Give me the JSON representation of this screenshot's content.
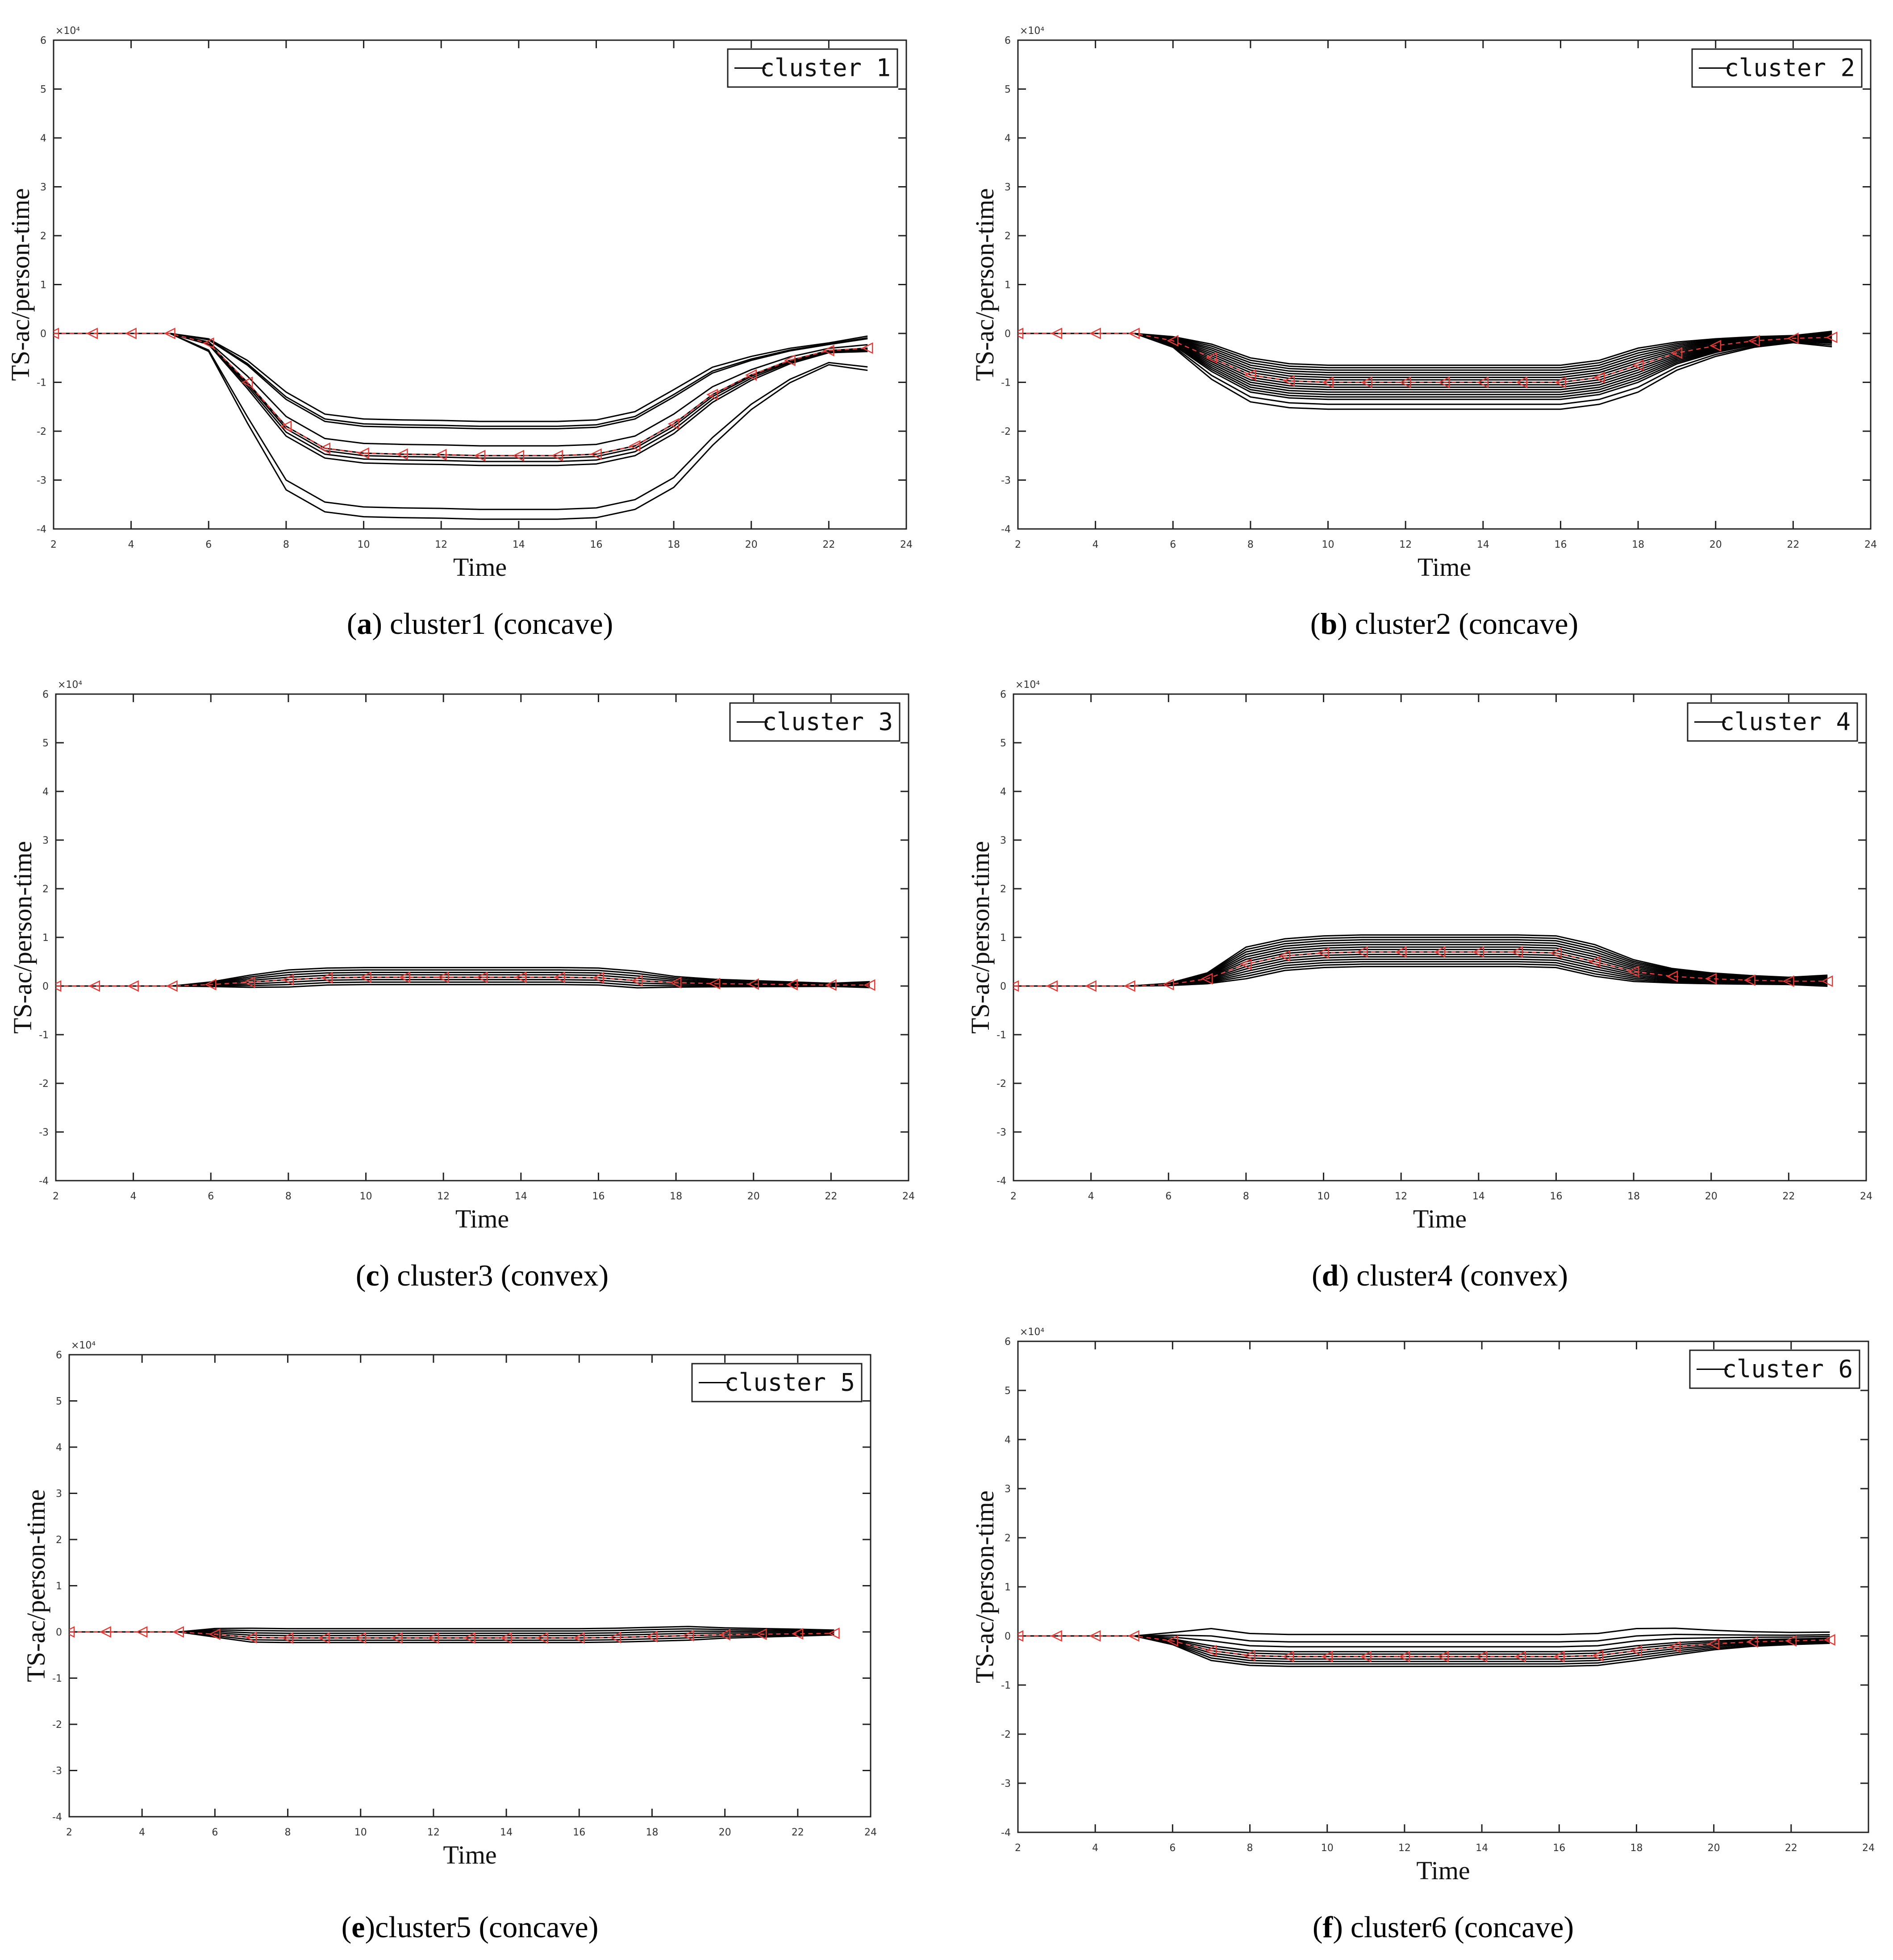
{
  "figure": {
    "panels": [
      {
        "id": "a",
        "caption_letter": "a",
        "caption_text": " cluster1 (concave)",
        "legend_label": "cluster 1",
        "exponent_label": "×10⁴",
        "chart_data": {
          "type": "line",
          "xlabel": "Time",
          "ylabel": "TS-ac/person-time",
          "xlim": [
            2,
            24
          ],
          "ylim": [
            -4,
            6
          ],
          "y_scale": 10000,
          "xticks": [
            2,
            4,
            6,
            8,
            10,
            12,
            14,
            16,
            18,
            20,
            22,
            24
          ],
          "yticks": [
            -4,
            -3,
            -2,
            -1,
            0,
            1,
            2,
            3,
            4,
            5,
            6
          ],
          "x": [
            2,
            3,
            4,
            5,
            6,
            7,
            8,
            9,
            10,
            11,
            12,
            13,
            14,
            15,
            16,
            17,
            18,
            19,
            20,
            21,
            22,
            23
          ],
          "center": [
            0,
            0,
            0,
            0,
            -0.2,
            -1.0,
            -1.9,
            -2.35,
            -2.45,
            -2.47,
            -2.48,
            -2.5,
            -2.5,
            -2.5,
            -2.47,
            -2.3,
            -1.85,
            -1.25,
            -0.85,
            -0.55,
            -0.35,
            -0.3
          ],
          "series_offsets": [
            0.55,
            0.7,
            0.2,
            0.0,
            -0.05,
            -0.12,
            -0.2,
            -1.1,
            -1.3,
            0.6
          ],
          "legend_position": "top-right"
        }
      },
      {
        "id": "b",
        "caption_letter": "b",
        "caption_text": " cluster2 (concave)",
        "legend_label": "cluster 2",
        "exponent_label": "×10⁴",
        "chart_data": {
          "type": "line",
          "xlabel": "Time",
          "ylabel": "TS-ac/person-time",
          "xlim": [
            2,
            24
          ],
          "ylim": [
            -4,
            6
          ],
          "y_scale": 10000,
          "xticks": [
            2,
            4,
            6,
            8,
            10,
            12,
            14,
            16,
            18,
            20,
            22,
            24
          ],
          "yticks": [
            -4,
            -3,
            -2,
            -1,
            0,
            1,
            2,
            3,
            4,
            5,
            6
          ],
          "x": [
            2,
            3,
            4,
            5,
            6,
            7,
            8,
            9,
            10,
            11,
            12,
            13,
            14,
            15,
            16,
            17,
            18,
            19,
            20,
            21,
            22,
            23
          ],
          "center": [
            0,
            0,
            0,
            0,
            -0.15,
            -0.5,
            -0.85,
            -0.97,
            -1.0,
            -1.0,
            -1.0,
            -1.0,
            -1.0,
            -1.0,
            -1.0,
            -0.9,
            -0.65,
            -0.4,
            -0.25,
            -0.15,
            -0.1,
            -0.08
          ],
          "series_offsets": [
            0.35,
            0.3,
            0.25,
            0.2,
            0.15,
            0.1,
            0.05,
            0.0,
            -0.05,
            -0.1,
            -0.15,
            -0.2,
            -0.25,
            -0.3,
            -0.35,
            -0.45,
            -0.55
          ],
          "legend_position": "top-right"
        }
      },
      {
        "id": "c",
        "caption_letter": "c",
        "caption_text": " cluster3 (convex)",
        "legend_label": "cluster 3",
        "exponent_label": "×10⁴",
        "chart_data": {
          "type": "line",
          "xlabel": "Time",
          "ylabel": "TS-ac/person-time",
          "xlim": [
            2,
            24
          ],
          "ylim": [
            -4,
            6
          ],
          "y_scale": 10000,
          "xticks": [
            2,
            4,
            6,
            8,
            10,
            12,
            14,
            16,
            18,
            20,
            22,
            24
          ],
          "yticks": [
            -4,
            -3,
            -2,
            -1,
            0,
            1,
            2,
            3,
            4,
            5,
            6
          ],
          "x": [
            2,
            3,
            4,
            5,
            6,
            7,
            8,
            9,
            10,
            11,
            12,
            13,
            14,
            15,
            16,
            17,
            18,
            19,
            20,
            21,
            22,
            23
          ],
          "center": [
            0,
            0,
            0,
            0,
            0.03,
            0.08,
            0.13,
            0.17,
            0.18,
            0.18,
            0.18,
            0.18,
            0.18,
            0.18,
            0.17,
            0.11,
            0.07,
            0.05,
            0.04,
            0.03,
            0.02,
            0.02
          ],
          "series_offsets": [
            0.2,
            0.15,
            0.1,
            0.05,
            0.0,
            -0.05,
            -0.1,
            -0.15
          ],
          "legend_position": "top-right"
        }
      },
      {
        "id": "d",
        "caption_letter": "d",
        "caption_text": " cluster4 (convex)",
        "legend_label": "cluster 4",
        "exponent_label": "×10⁴",
        "chart_data": {
          "type": "line",
          "xlabel": "Time",
          "ylabel": "TS-ac/person-time",
          "xlim": [
            2,
            24
          ],
          "ylim": [
            -4,
            6
          ],
          "y_scale": 10000,
          "xticks": [
            2,
            4,
            6,
            8,
            10,
            12,
            14,
            16,
            18,
            20,
            22,
            24
          ],
          "yticks": [
            -4,
            -3,
            -2,
            -1,
            0,
            1,
            2,
            3,
            4,
            5,
            6
          ],
          "x": [
            2,
            3,
            4,
            5,
            6,
            7,
            8,
            9,
            10,
            11,
            12,
            13,
            14,
            15,
            16,
            17,
            18,
            19,
            20,
            21,
            22,
            23
          ],
          "center": [
            0,
            0,
            0,
            0,
            0.03,
            0.15,
            0.45,
            0.62,
            0.68,
            0.7,
            0.7,
            0.7,
            0.7,
            0.7,
            0.68,
            0.5,
            0.3,
            0.2,
            0.15,
            0.12,
            0.1,
            0.1
          ],
          "series_offsets": [
            0.35,
            0.3,
            0.25,
            0.2,
            0.15,
            0.1,
            0.05,
            0.0,
            -0.05,
            -0.1,
            -0.15,
            -0.2,
            -0.25,
            -0.3
          ],
          "legend_position": "top-right"
        }
      },
      {
        "id": "e",
        "caption_letter": "e",
        "caption_text": "cluster5 (concave)",
        "legend_label": "cluster 5",
        "exponent_label": "×10⁴",
        "chart_data": {
          "type": "line",
          "xlabel": "Time",
          "ylabel": "TS-ac/person-time",
          "xlim": [
            2,
            24
          ],
          "ylim": [
            -4,
            6
          ],
          "y_scale": 10000,
          "xticks": [
            2,
            4,
            6,
            8,
            10,
            12,
            14,
            16,
            18,
            20,
            22,
            24
          ],
          "yticks": [
            -4,
            -3,
            -2,
            -1,
            0,
            1,
            2,
            3,
            4,
            5,
            6
          ],
          "x": [
            2,
            3,
            4,
            5,
            6,
            7,
            8,
            9,
            10,
            11,
            12,
            13,
            14,
            15,
            16,
            17,
            18,
            19,
            20,
            21,
            22,
            23
          ],
          "center": [
            0,
            0,
            0,
            0,
            -0.05,
            -0.12,
            -0.13,
            -0.13,
            -0.13,
            -0.13,
            -0.13,
            -0.13,
            -0.13,
            -0.13,
            -0.13,
            -0.12,
            -0.1,
            -0.08,
            -0.06,
            -0.05,
            -0.04,
            -0.03
          ],
          "series_offsets": [
            0.2,
            0.15,
            0.1,
            0.05,
            0.0,
            -0.05,
            -0.1
          ],
          "legend_position": "top-right"
        }
      },
      {
        "id": "f",
        "caption_letter": "f",
        "caption_text": " cluster6 (concave)",
        "legend_label": "cluster 6",
        "exponent_label": "×10⁴",
        "chart_data": {
          "type": "line",
          "xlabel": "Time",
          "ylabel": "TS-ac/person-time",
          "xlim": [
            2,
            24
          ],
          "ylim": [
            -4,
            6
          ],
          "y_scale": 10000,
          "xticks": [
            2,
            4,
            6,
            8,
            10,
            12,
            14,
            16,
            18,
            20,
            22,
            24
          ],
          "yticks": [
            -4,
            -3,
            -2,
            -1,
            0,
            1,
            2,
            3,
            4,
            5,
            6
          ],
          "x": [
            2,
            3,
            4,
            5,
            6,
            7,
            8,
            9,
            10,
            11,
            12,
            13,
            14,
            15,
            16,
            17,
            18,
            19,
            20,
            21,
            22,
            23
          ],
          "center": [
            0,
            0,
            0,
            0,
            -0.1,
            -0.3,
            -0.4,
            -0.42,
            -0.42,
            -0.42,
            -0.42,
            -0.42,
            -0.42,
            -0.42,
            -0.42,
            -0.4,
            -0.3,
            -0.22,
            -0.16,
            -0.12,
            -0.1,
            -0.08
          ],
          "series_offsets": [
            0.45,
            0.3,
            0.2,
            0.1,
            0.05,
            0.0,
            -0.05,
            -0.1,
            -0.15,
            -0.2
          ],
          "legend_position": "top-right"
        }
      }
    ]
  }
}
